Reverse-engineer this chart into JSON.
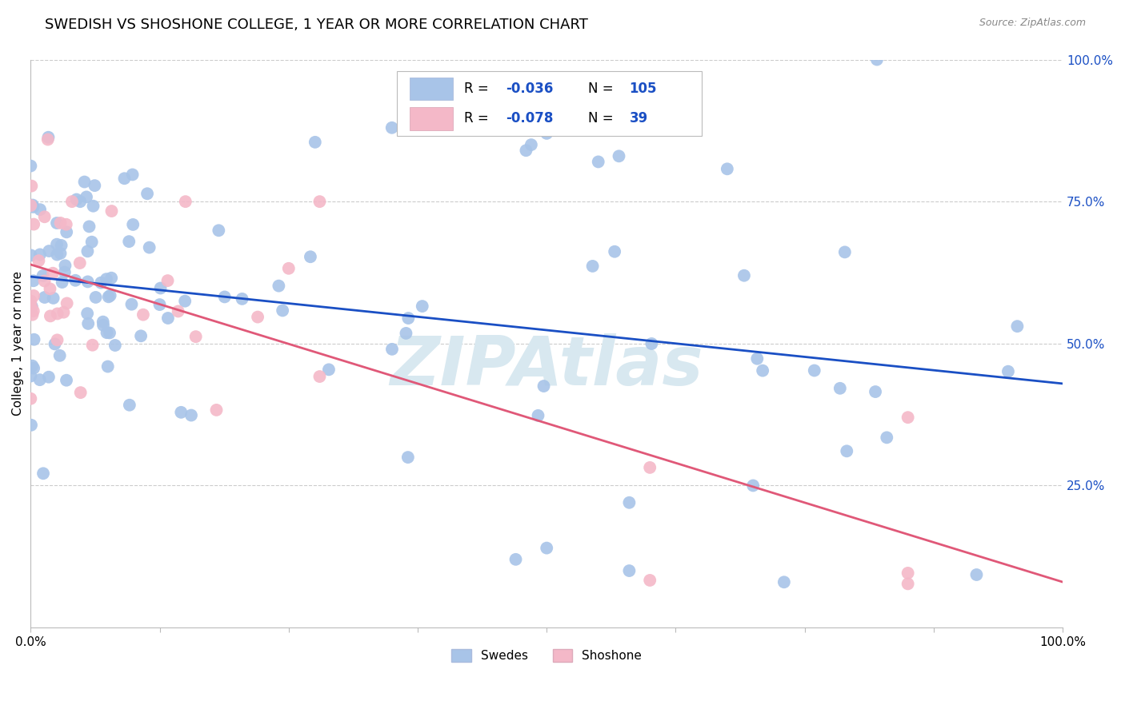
{
  "title": "SWEDISH VS SHOSHONE COLLEGE, 1 YEAR OR MORE CORRELATION CHART",
  "source": "Source: ZipAtlas.com",
  "ylabel": "College, 1 year or more",
  "r_swedes": -0.036,
  "n_swedes": 105,
  "r_shoshone": -0.078,
  "n_shoshone": 39,
  "swede_color": "#a8c4e8",
  "shoshone_color": "#f4b8c8",
  "trend_swede_color": "#1a4fc4",
  "trend_shoshone_color": "#e05878",
  "legend_text_color": "#1a4fc4",
  "watermark_color": "#d8e8f0",
  "background_color": "#ffffff",
  "grid_color": "#cccccc",
  "title_fontsize": 13,
  "axis_fontsize": 11,
  "tick_fontsize": 11,
  "right_tick_color": "#1a4fc4",
  "bottom_tick_color": "#000000"
}
